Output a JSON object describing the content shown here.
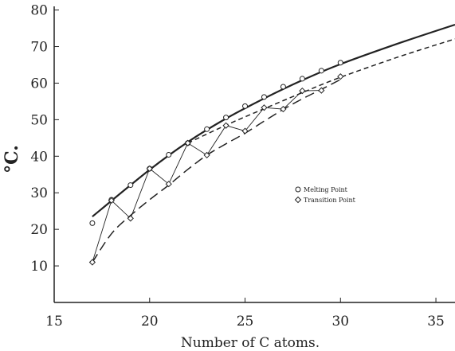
{
  "chart_data": {
    "type": "scatter",
    "title": "",
    "xlabel": "Number of C atoms.",
    "ylabel": "°C.",
    "xlim": [
      15,
      36
    ],
    "ylim": [
      0,
      81
    ],
    "x_ticks": [
      15,
      20,
      25,
      30,
      35
    ],
    "y_ticks": [
      10,
      20,
      30,
      40,
      50,
      60,
      70,
      80
    ],
    "legend": {
      "position": "center-right",
      "entries": [
        {
          "label": "Melting Point",
          "marker": "circle"
        },
        {
          "label": "Transition Point",
          "marker": "diamond"
        }
      ]
    },
    "series": [
      {
        "name": "Melting Point",
        "marker": "circle",
        "x": [
          17,
          18,
          19,
          20,
          21,
          22,
          23,
          24,
          25,
          26,
          27,
          28,
          29,
          30
        ],
        "y": [
          21.7,
          28.1,
          32.1,
          36.6,
          40.4,
          43.6,
          47.4,
          50.6,
          53.7,
          56.2,
          59.0,
          61.2,
          63.4,
          65.6
        ]
      },
      {
        "name": "Transition Point",
        "marker": "diamond",
        "x": [
          17,
          18,
          19,
          20,
          21,
          22,
          23,
          24,
          25,
          26,
          27,
          28,
          29,
          30
        ],
        "y": [
          11.0,
          27.9,
          23.0,
          36.6,
          32.4,
          43.6,
          40.3,
          48.4,
          46.9,
          53.3,
          52.9,
          57.9,
          58.0,
          61.8
        ]
      }
    ],
    "curves": [
      {
        "style": "solid",
        "x": [
          17,
          20,
          22,
          24,
          26,
          28,
          30,
          33,
          36
        ],
        "y": [
          23.5,
          36.3,
          43.9,
          50.3,
          55.8,
          60.8,
          65.2,
          70.8,
          76.0
        ]
      },
      {
        "style": "dash-long",
        "x": [
          17,
          18,
          19,
          20,
          21,
          22,
          23,
          24,
          25,
          26,
          27,
          28,
          29,
          30
        ],
        "y": [
          11.0,
          18.8,
          23.8,
          28.1,
          32.1,
          36.4,
          40.3,
          43.4,
          46.3,
          49.6,
          52.8,
          55.7,
          58.3,
          61.0
        ]
      },
      {
        "style": "dash-short",
        "x": [
          22,
          24,
          26,
          28,
          30,
          33,
          36
        ],
        "y": [
          43.6,
          48.5,
          53.0,
          57.4,
          61.6,
          67.1,
          72.1
        ]
      }
    ],
    "zigzag": {
      "x": [
        17,
        18,
        19,
        20,
        21,
        22,
        23,
        24,
        25,
        26,
        27,
        28,
        29
      ],
      "y": [
        11.0,
        27.9,
        23.0,
        36.6,
        32.4,
        43.6,
        40.3,
        48.4,
        46.9,
        53.3,
        52.9,
        57.9,
        58.0
      ]
    },
    "grid": false
  }
}
